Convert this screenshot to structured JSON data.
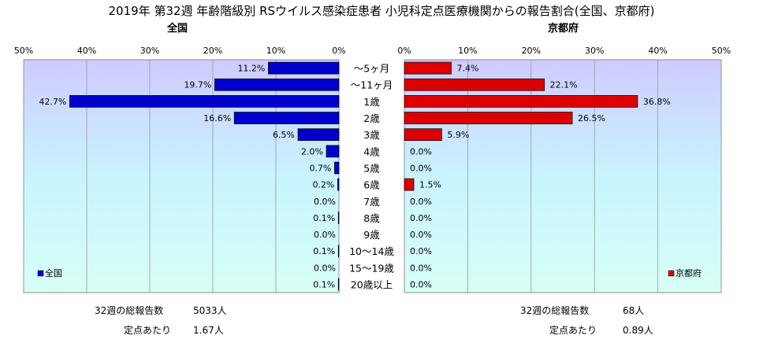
{
  "title": "2019年 第32週 年齢階級別 RSウイルス感染症患者 小児科定点医療機関からの報告割合(全国、京都府)",
  "left_panel": {
    "subtitle": "全国",
    "legend": "全国",
    "color": "#0000CC",
    "total_label": "32週の総報告数",
    "total_value": "5033人",
    "per_label": "定点あたり",
    "per_value": "1.67人"
  },
  "right_panel": {
    "subtitle": "京都府",
    "legend": "京都府",
    "color": "#DD0000",
    "total_label": "32週の総報告数",
    "total_value": "68人",
    "per_label": "定点あたり",
    "per_value": "0.89人"
  },
  "chart_data": {
    "type": "bar",
    "orientation": "horizontal-butterfly",
    "categories": [
      "～5ヶ月",
      "～11ヶ月",
      "1歳",
      "2歳",
      "3歳",
      "4歳",
      "5歳",
      "6歳",
      "7歳",
      "8歳",
      "9歳",
      "10～14歳",
      "15～19歳",
      "20歳以上"
    ],
    "series": [
      {
        "name": "全国",
        "values": [
          11.2,
          19.7,
          42.7,
          16.6,
          6.5,
          2.0,
          0.7,
          0.2,
          0.0,
          0.1,
          0.0,
          0.1,
          0.0,
          0.1
        ],
        "labels": [
          "11.2%",
          "19.7%",
          "42.7%",
          "16.6%",
          "6.5%",
          "2.0%",
          "0.7%",
          "0.2%",
          "0.0%",
          "0.1%",
          "0.0%",
          "0.1%",
          "0.0%",
          "0.1%"
        ]
      },
      {
        "name": "京都府",
        "values": [
          7.4,
          22.1,
          36.8,
          26.5,
          5.9,
          0.0,
          0.0,
          1.5,
          0.0,
          0.0,
          0.0,
          0.0,
          0.0,
          0.0
        ],
        "labels": [
          "7.4%",
          "22.1%",
          "36.8%",
          "26.5%",
          "5.9%",
          "0.0%",
          "0.0%",
          "1.5%",
          "0.0%",
          "0.0%",
          "0.0%",
          "0.0%",
          "0.0%",
          "0.0%"
        ]
      }
    ],
    "xlim": [
      0,
      50
    ],
    "ticks": [
      0,
      10,
      20,
      30,
      40,
      50
    ],
    "tick_labels": [
      "0%",
      "10%",
      "20%",
      "30%",
      "40%",
      "50%"
    ],
    "grid": true,
    "units": "%"
  }
}
